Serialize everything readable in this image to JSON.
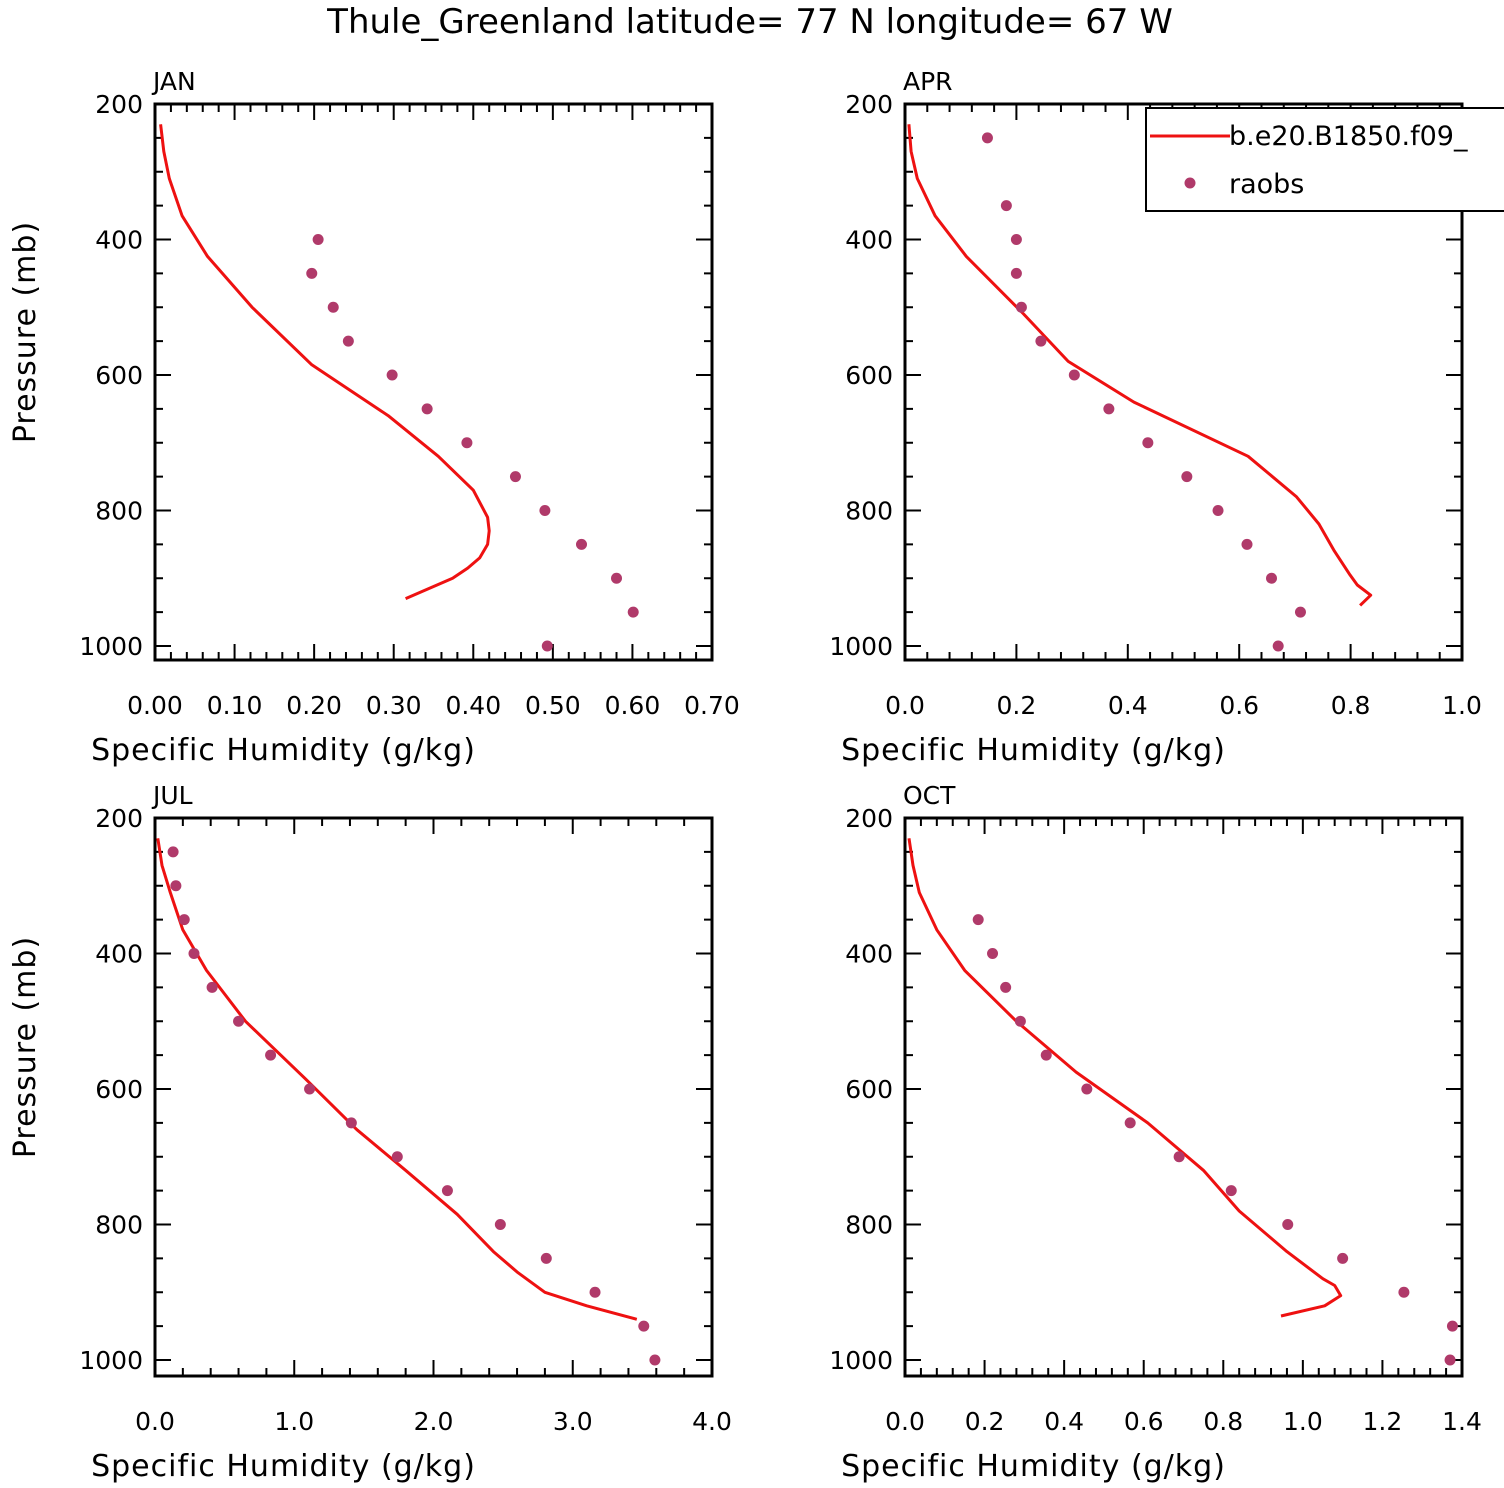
{
  "title": "Thule_Greenland  latitude= 77 N longitude= 67 W",
  "colors": {
    "model": "#ee1111",
    "obs": "#b03a6a",
    "axis": "#000000"
  },
  "legend": {
    "model_label": "b.e20.B1850.f09_",
    "obs_label": "raobs",
    "placement": "top-right"
  },
  "chart_data": [
    {
      "type": "line",
      "panel_label": "JAN",
      "xlabel": "Specific Humidity (g/kg)",
      "ylabel": "Pressure (mb)",
      "xlim": [
        0,
        0.7
      ],
      "ylim": [
        1000,
        200
      ],
      "xticks": [
        "0.00",
        "0.10",
        "0.20",
        "0.30",
        "0.40",
        "0.50",
        "0.60",
        "0.70"
      ],
      "yticks": [
        "200",
        "400",
        "600",
        "800",
        "1000"
      ],
      "series": [
        {
          "name": "b.e20.B1850.f09_",
          "kind": "line",
          "x": [
            0.007,
            0.011,
            0.018,
            0.034,
            0.066,
            0.122,
            0.197,
            0.293,
            0.356,
            0.4,
            0.418,
            0.42,
            0.418,
            0.408,
            0.393,
            0.374,
            0.315
          ],
          "y": [
            230,
            270,
            310,
            365,
            425,
            500,
            585,
            660,
            720,
            770,
            810,
            830,
            850,
            870,
            885,
            900,
            930
          ]
        },
        {
          "name": "raobs",
          "kind": "scatter",
          "x": [
            0.205,
            0.197,
            0.224,
            0.243,
            0.298,
            0.342,
            0.392,
            0.453,
            0.49,
            0.536,
            0.58,
            0.601,
            0.493
          ],
          "y": [
            400,
            450,
            500,
            550,
            600,
            650,
            700,
            750,
            800,
            850,
            900,
            950,
            1000
          ]
        }
      ]
    },
    {
      "type": "line",
      "panel_label": "APR",
      "xlabel": "Specific Humidity (g/kg)",
      "ylabel": "",
      "xlim": [
        0,
        1.0
      ],
      "ylim": [
        1000,
        200
      ],
      "xticks": [
        "0.0",
        "0.2",
        "0.4",
        "0.6",
        "0.8",
        "1.0"
      ],
      "yticks": [
        "200",
        "400",
        "600",
        "800",
        "1000"
      ],
      "series": [
        {
          "name": "b.e20.B1850.f09_",
          "kind": "line",
          "x": [
            0.007,
            0.011,
            0.022,
            0.054,
            0.11,
            0.213,
            0.293,
            0.411,
            0.616,
            0.703,
            0.743,
            0.771,
            0.799,
            0.812,
            0.836,
            0.817
          ],
          "y": [
            230,
            270,
            310,
            365,
            425,
            510,
            580,
            640,
            720,
            780,
            820,
            860,
            895,
            910,
            925,
            940
          ]
        },
        {
          "name": "raobs",
          "kind": "scatter",
          "x": [
            0.148,
            0.182,
            0.2,
            0.2,
            0.209,
            0.244,
            0.304,
            0.366,
            0.436,
            0.506,
            0.562,
            0.614,
            0.658,
            0.71,
            0.67
          ],
          "y": [
            250,
            350,
            400,
            450,
            500,
            550,
            600,
            650,
            700,
            750,
            800,
            850,
            900,
            950,
            1000
          ]
        }
      ]
    },
    {
      "type": "line",
      "panel_label": "JUL",
      "xlabel": "Specific Humidity (g/kg)",
      "ylabel": "Pressure (mb)",
      "xlim": [
        0,
        4.0
      ],
      "ylim": [
        1000,
        200
      ],
      "xticks": [
        "0.0",
        "1.0",
        "2.0",
        "3.0",
        "4.0"
      ],
      "yticks": [
        "200",
        "400",
        "600",
        "800",
        "1000"
      ],
      "series": [
        {
          "name": "b.e20.B1850.f09_",
          "kind": "line",
          "x": [
            0.02,
            0.05,
            0.11,
            0.2,
            0.37,
            0.65,
            1.08,
            1.45,
            1.8,
            2.17,
            2.43,
            2.6,
            2.8,
            3.1,
            3.46
          ],
          "y": [
            230,
            270,
            310,
            365,
            425,
            500,
            585,
            660,
            720,
            785,
            840,
            870,
            900,
            920,
            940
          ]
        },
        {
          "name": "raobs",
          "kind": "scatter",
          "x": [
            0.13,
            0.15,
            0.21,
            0.28,
            0.41,
            0.6,
            0.83,
            1.11,
            1.41,
            1.74,
            2.1,
            2.48,
            2.81,
            3.16,
            3.51,
            3.59
          ],
          "y": [
            250,
            300,
            350,
            400,
            450,
            500,
            550,
            600,
            650,
            700,
            750,
            800,
            850,
            900,
            950,
            1000
          ]
        }
      ]
    },
    {
      "type": "line",
      "panel_label": "OCT",
      "xlabel": "Specific Humidity (g/kg)",
      "ylabel": "",
      "xlim": [
        0,
        1.4
      ],
      "ylim": [
        1000,
        200
      ],
      "xticks": [
        "0.0",
        "0.2",
        "0.4",
        "0.6",
        "0.8",
        "1.0",
        "1.2",
        "1.4"
      ],
      "yticks": [
        "200",
        "400",
        "600",
        "800",
        "1000"
      ],
      "series": [
        {
          "name": "b.e20.B1850.f09_",
          "kind": "line",
          "x": [
            0.01,
            0.02,
            0.036,
            0.08,
            0.15,
            0.28,
            0.43,
            0.61,
            0.75,
            0.84,
            0.96,
            1.05,
            1.08,
            1.095,
            1.055,
            0.945
          ],
          "y": [
            230,
            270,
            310,
            365,
            425,
            500,
            575,
            650,
            720,
            780,
            840,
            880,
            890,
            905,
            920,
            935
          ]
        },
        {
          "name": "raobs",
          "kind": "scatter",
          "x": [
            0.184,
            0.22,
            0.253,
            0.29,
            0.355,
            0.457,
            0.566,
            0.689,
            0.82,
            0.962,
            1.1,
            1.254,
            1.376,
            1.37
          ],
          "y": [
            350,
            400,
            450,
            500,
            550,
            600,
            650,
            700,
            750,
            800,
            850,
            900,
            950,
            1000
          ]
        }
      ]
    }
  ]
}
